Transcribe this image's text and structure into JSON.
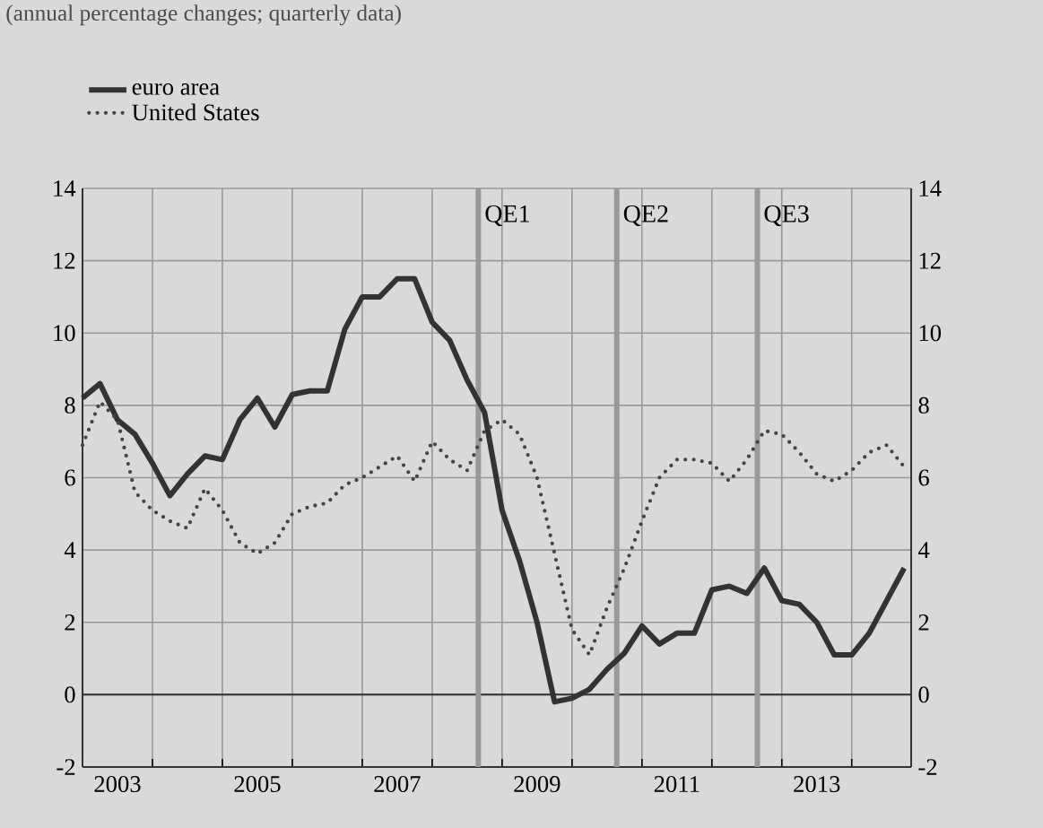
{
  "chart_data": {
    "type": "line",
    "title": "(annual percentage changes; quarterly data)",
    "x": [
      2003,
      2003.25,
      2003.5,
      2003.75,
      2004,
      2004.25,
      2004.5,
      2004.75,
      2005,
      2005.25,
      2005.5,
      2005.75,
      2006,
      2006.25,
      2006.5,
      2006.75,
      2007,
      2007.25,
      2007.5,
      2007.75,
      2008,
      2008.25,
      2008.5,
      2008.75,
      2009,
      2009.25,
      2009.5,
      2009.75,
      2010,
      2010.25,
      2010.5,
      2010.75,
      2011,
      2011.25,
      2011.5,
      2011.75,
      2012,
      2012.25,
      2012.5,
      2012.75,
      2013,
      2013.25,
      2013.5,
      2013.75,
      2014,
      2014.25,
      2014.5,
      2014.75
    ],
    "series": [
      {
        "name": "euro area",
        "color": "#333333",
        "line_style": "solid",
        "values": [
          8.2,
          8.6,
          7.6,
          7.2,
          6.4,
          5.5,
          6.1,
          6.6,
          6.5,
          7.6,
          8.2,
          7.4,
          8.3,
          8.4,
          8.4,
          10.1,
          11.0,
          11.0,
          11.5,
          11.5,
          10.3,
          9.8,
          8.7,
          7.8,
          5.1,
          3.7,
          2.0,
          -0.2,
          -0.1,
          0.15,
          0.7,
          1.15,
          1.9,
          1.4,
          1.7,
          1.7,
          2.9,
          3.0,
          2.8,
          3.5,
          2.6,
          2.5,
          2.0,
          1.1,
          1.1,
          1.7,
          2.6,
          3.5
        ]
      },
      {
        "name": "United States",
        "color": "#444444",
        "line_style": "dotted",
        "values": [
          6.9,
          8.1,
          7.6,
          5.6,
          5.1,
          4.8,
          4.6,
          5.7,
          5.1,
          4.2,
          3.9,
          4.2,
          5.0,
          5.2,
          5.3,
          5.8,
          6.0,
          6.3,
          6.6,
          5.9,
          7.0,
          6.5,
          6.2,
          7.3,
          7.6,
          7.2,
          6.0,
          3.9,
          1.8,
          1.1,
          2.4,
          3.5,
          4.8,
          6.0,
          6.5,
          6.5,
          6.4,
          5.9,
          6.5,
          7.3,
          7.2,
          6.7,
          6.1,
          5.9,
          6.2,
          6.7,
          6.9,
          6.3
        ]
      }
    ],
    "xlim": [
      2003,
      2014.85
    ],
    "xticks": [
      {
        "value": 2003,
        "label": null
      },
      {
        "value": 2004,
        "label": null
      },
      {
        "value": 2005,
        "label": null
      },
      {
        "value": 2006,
        "label": null
      },
      {
        "value": 2007,
        "label": null
      },
      {
        "value": 2008,
        "label": null
      },
      {
        "value": 2009,
        "label": null
      },
      {
        "value": 2010,
        "label": null
      },
      {
        "value": 2011,
        "label": null
      },
      {
        "value": 2012,
        "label": null
      },
      {
        "value": 2013,
        "label": null
      },
      {
        "value": 2014,
        "label": null
      },
      {
        "value": 2003.5,
        "label": "2003"
      },
      {
        "value": 2005.5,
        "label": "2005"
      },
      {
        "value": 2007.5,
        "label": "2007"
      },
      {
        "value": 2009.5,
        "label": "2009"
      },
      {
        "value": 2011.5,
        "label": "2011"
      },
      {
        "value": 2013.5,
        "label": "2013"
      }
    ],
    "ylim": [
      -2,
      14
    ],
    "yticks": [
      -2,
      0,
      2,
      4,
      6,
      8,
      10,
      12,
      14
    ],
    "y2lim": [
      -2,
      14
    ],
    "y2ticks": [
      -2,
      0,
      2,
      4,
      6,
      8,
      10,
      12,
      14
    ],
    "ref_lines": [
      {
        "axis": "y",
        "value": 0,
        "color": "#333333"
      },
      {
        "axis": "x",
        "value": 2008.66,
        "label": "QE1",
        "color": "#999999"
      },
      {
        "axis": "x",
        "value": 2010.64,
        "label": "QE2",
        "color": "#999999"
      },
      {
        "axis": "x",
        "value": 2012.65,
        "label": "QE3",
        "color": "#999999"
      }
    ],
    "grid": true,
    "legend": "top left"
  }
}
